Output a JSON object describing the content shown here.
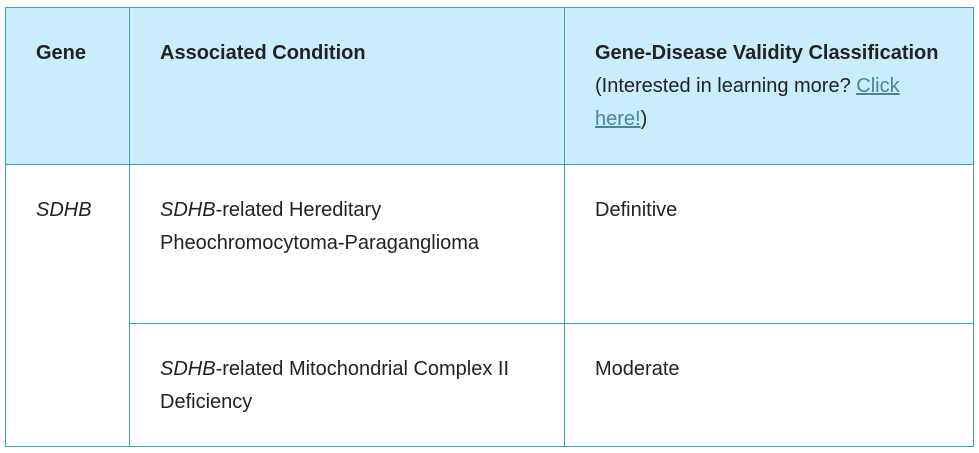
{
  "table": {
    "header": [
      "Gene",
      "Associated Condition",
      {
        "bold": "Gene-Disease Validity Classification",
        "note": "(Interested in learning more?",
        "link": "Click here!",
        "close": ")"
      }
    ],
    "gene": "SDHB",
    "rows": [
      {
        "condition": {
          "gene": "SDHB",
          "text": "-related Hereditary Pheochromocytoma-Paraganglioma"
        },
        "classification": "Definitive"
      },
      {
        "condition": {
          "gene": "SDHB",
          "text": "-related Mitochondrial Complex II Deficiency"
        },
        "classification": "Moderate"
      }
    ]
  }
}
